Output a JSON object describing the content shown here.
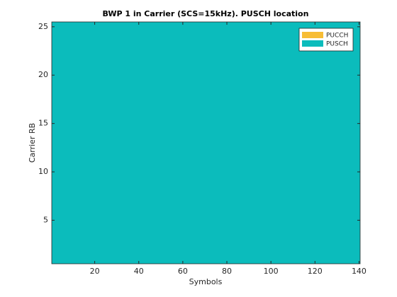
{
  "chart_data": {
    "type": "area",
    "title": "BWP 1 in Carrier (SCS=15kHz). PUSCH location",
    "x_label": "Symbols",
    "y_label": "Carrier RB",
    "x": [
      0.5,
      140.5
    ],
    "series": [
      {
        "name": "PUCCH",
        "color": "#f7bd35",
        "values": [
          null,
          null
        ]
      },
      {
        "name": "PUSCH",
        "color": "#0bbcbc",
        "values": [
          25.5,
          25.5
        ]
      }
    ],
    "xlim": [
      0.5,
      140.5
    ],
    "xticks": [
      20,
      40,
      60,
      80,
      100,
      120,
      140
    ],
    "ylim": [
      0.5,
      25.5
    ],
    "yticks": [
      5,
      10,
      15,
      20,
      25
    ],
    "grid": false,
    "legend": "top-right"
  }
}
